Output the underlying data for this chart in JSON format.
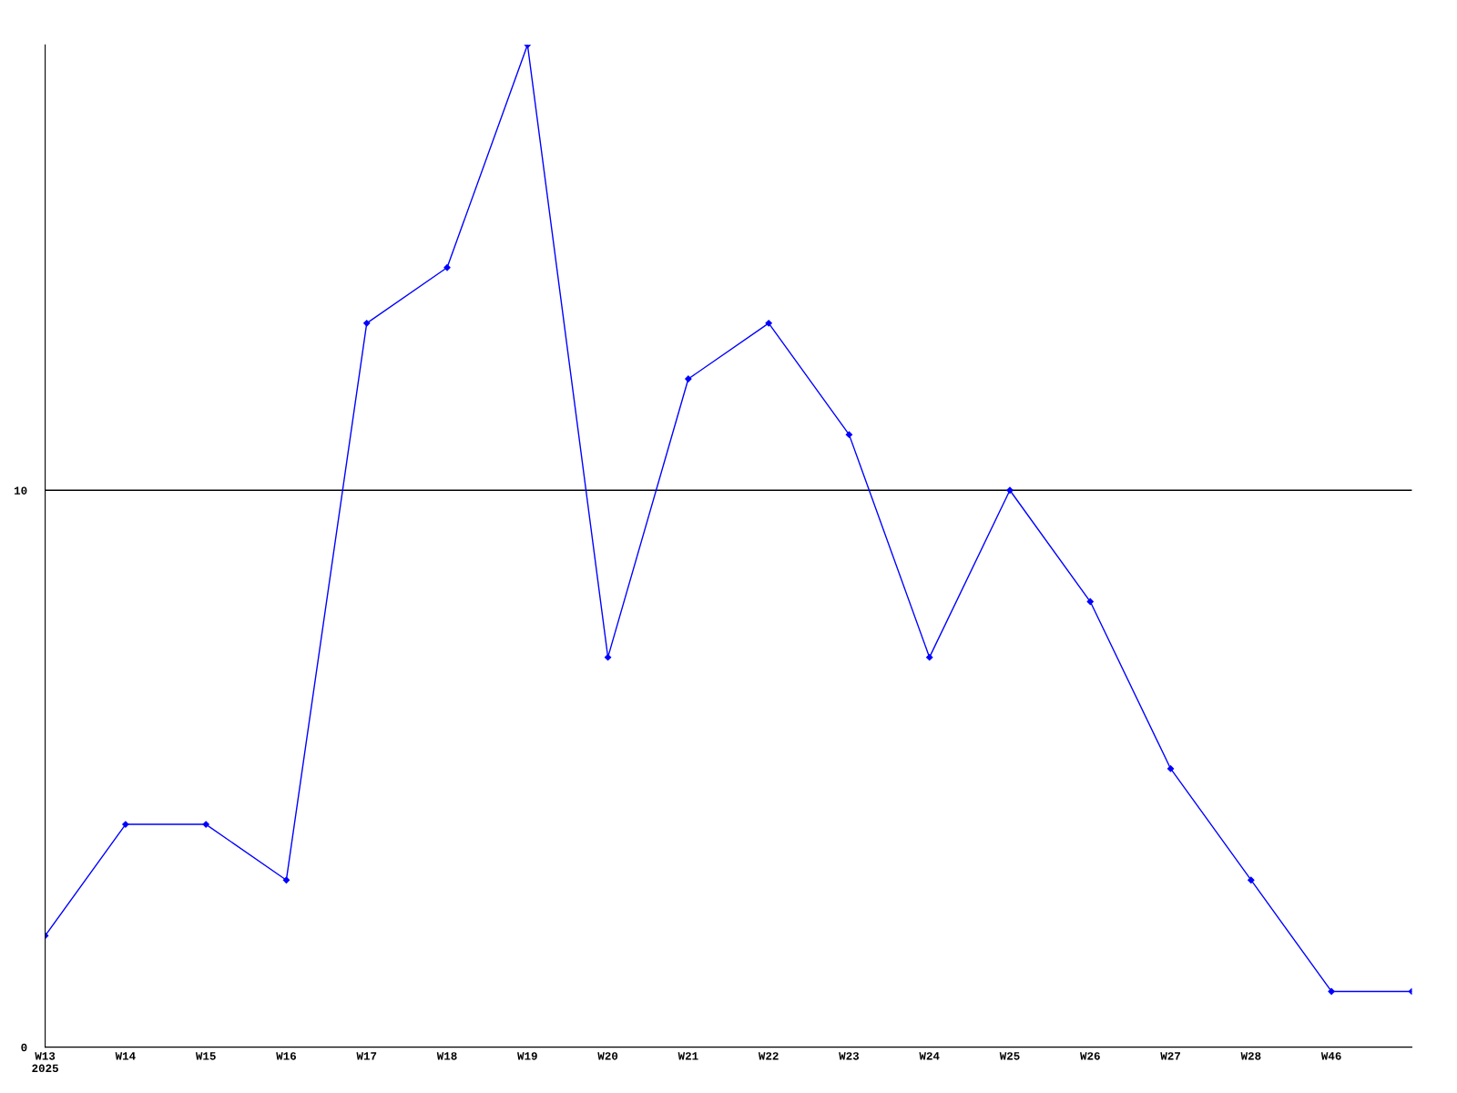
{
  "chart_data": {
    "type": "line",
    "categories": [
      "W13\n2025",
      "W14",
      "W15",
      "W16",
      "W17",
      "W18",
      "W19",
      "W20",
      "W21",
      "W22",
      "W23",
      "W24",
      "W25",
      "W26",
      "W27",
      "W28",
      "W46",
      null
    ],
    "series": [
      {
        "color": "#0000ff",
        "values": [
          2,
          4,
          4,
          3,
          13,
          14,
          18,
          7,
          12,
          13,
          11,
          7,
          10,
          8,
          5,
          3,
          1,
          1
        ]
      }
    ],
    "ylim": [
      0,
      18
    ],
    "yticks": [
      0,
      10
    ],
    "grid": "y",
    "marker": "diamond",
    "line_style": "solid"
  }
}
